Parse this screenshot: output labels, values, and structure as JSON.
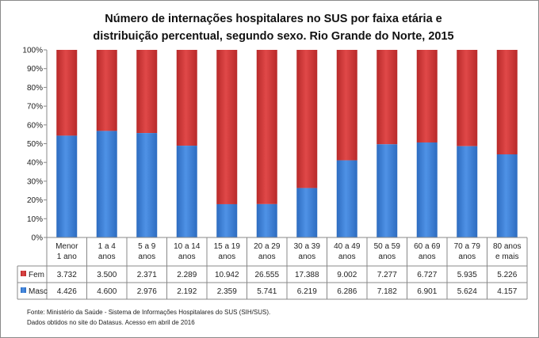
{
  "chart_data": {
    "type": "bar",
    "stacked": "percent",
    "title": "Número de internações hospitalares no SUS por faixa etária e distribuição percentual, segundo sexo. Rio Grande do Norte, 2015",
    "title_lines": [
      "Número de internações hospitalares no SUS por faixa etária e",
      "distribuição percentual, segundo sexo. Rio Grande do Norte, 2015"
    ],
    "categories": [
      [
        "Menor",
        "1 ano"
      ],
      [
        "1 a 4",
        "anos"
      ],
      [
        "5 a 9",
        "anos"
      ],
      [
        "10 a 14",
        "anos"
      ],
      [
        "15 a 19",
        "anos"
      ],
      [
        "20 a 29",
        "anos"
      ],
      [
        "30 a 39",
        "anos"
      ],
      [
        "40 a 49",
        "anos"
      ],
      [
        "50 a 59",
        "anos"
      ],
      [
        "60 a 69",
        "anos"
      ],
      [
        "70 a 79",
        "anos"
      ],
      [
        "80 anos",
        "e mais"
      ]
    ],
    "series": [
      {
        "name": "Fem",
        "color": "#d63b3b",
        "values": [
          3732,
          3500,
          2371,
          2289,
          10942,
          26555,
          17388,
          9002,
          7277,
          6727,
          5935,
          5226
        ],
        "labels": [
          "3.732",
          "3.500",
          "2.371",
          "2.289",
          "10.942",
          "26.555",
          "17.388",
          "9.002",
          "7.277",
          "6.727",
          "5.935",
          "5.226"
        ]
      },
      {
        "name": "Masc",
        "color": "#3d7fd6",
        "values": [
          4426,
          4600,
          2976,
          2192,
          2359,
          5741,
          6219,
          6286,
          7182,
          6901,
          5624,
          4157
        ],
        "labels": [
          "4.426",
          "4.600",
          "2.976",
          "2.192",
          "2.359",
          "5.741",
          "6.219",
          "6.286",
          "7.182",
          "6.901",
          "5.624",
          "4.157"
        ]
      }
    ],
    "yticks": [
      "0%",
      "10%",
      "20%",
      "30%",
      "40%",
      "50%",
      "60%",
      "70%",
      "80%",
      "90%",
      "100%"
    ],
    "ylim": [
      0,
      100
    ],
    "grid": false,
    "legend": "data-table"
  },
  "source": {
    "line1": "Fonte: Ministério da Saúde - Sistema de Informações Hospitalares do SUS (SIH/SUS).",
    "line2": "Dados obtidos no site do Datasus. Acesso em abril de 2016"
  }
}
